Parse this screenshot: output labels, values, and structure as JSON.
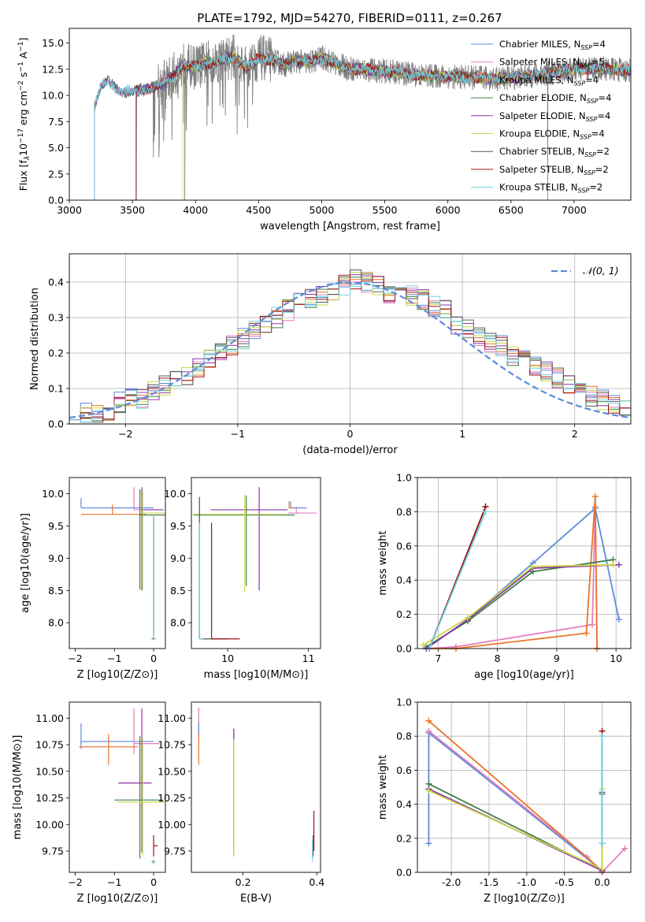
{
  "figure_title": "PLATE=1792, MJD=54270, FIBERID=0111, z=0.267",
  "colors": {
    "Chabrier MILES": "#5b8bd9",
    "Salpeter MILES": "#e37fbd",
    "Kroupa MILES": "#e8742a",
    "Chabrier ELODIE": "#3f7f46",
    "Salpeter ELODIE": "#8b34a8",
    "Kroupa ELODIE": "#c8da4a",
    "Chabrier STELIB": "#555555",
    "Salpeter STELIB": "#a11212",
    "Kroupa STELIB": "#72d3e3",
    "data": "#808080",
    "gauss": "#5b8bd9"
  },
  "chart_data": [
    {
      "id": "spectrum",
      "type": "line",
      "title": "PLATE=1792, MJD=54270, FIBERID=0111, z=0.267",
      "xlabel": "wavelength [Angstrom, rest frame]",
      "ylabel": "Flux [f_λ 10^-17 erg cm^-2 s^-1 A^-1]",
      "xlim": [
        3000,
        7450
      ],
      "ylim": [
        0,
        16.4
      ],
      "xticks": [
        3000,
        3500,
        4000,
        4500,
        5000,
        5500,
        6000,
        6500,
        7000
      ],
      "yticks": [
        0.0,
        2.5,
        5.0,
        7.5,
        10.0,
        12.5,
        15.0
      ],
      "legend": "top-right",
      "legend_entries": [
        {
          "name": "Chabrier MILES",
          "label": "Chabrier MILES, N",
          "sub": "SSP",
          "suffix": "=4"
        },
        {
          "name": "Salpeter MILES",
          "label": "Salpeter MILES, N",
          "sub": "SSP",
          "suffix": "=5"
        },
        {
          "name": "Kroupa MILES",
          "label": "Kroupa MILES, N",
          "sub": "SSP",
          "suffix": "=4"
        },
        {
          "name": "Chabrier ELODIE",
          "label": "Chabrier ELODIE, N",
          "sub": "SSP",
          "suffix": "=4"
        },
        {
          "name": "Salpeter ELODIE",
          "label": "Salpeter ELODIE, N",
          "sub": "SSP",
          "suffix": "=4"
        },
        {
          "name": "Kroupa ELODIE",
          "label": "Kroupa ELODIE, N",
          "sub": "SSP",
          "suffix": "=4"
        },
        {
          "name": "Chabrier STELIB",
          "label": "Chabrier STELIB, N",
          "sub": "SSP",
          "suffix": "=2"
        },
        {
          "name": "Salpeter STELIB",
          "label": "Salpeter STELIB, N",
          "sub": "SSP",
          "suffix": "=2"
        },
        {
          "name": "Kroupa STELIB",
          "label": "Kroupa STELIB, N",
          "sub": "SSP",
          "suffix": "=2"
        }
      ],
      "continuum": {
        "wavelength": [
          3200,
          3250,
          3300,
          3400,
          3500,
          3600,
          3700,
          3800,
          3900,
          4000,
          4100,
          4200,
          4300,
          4400,
          4500,
          4600,
          4700,
          4800,
          4900,
          5000,
          5200,
          5400,
          5600,
          5800,
          6000,
          6200,
          6400,
          6600,
          6800,
          7000,
          7200,
          7400
        ],
        "flux": [
          9.0,
          10.8,
          11.3,
          10.5,
          10.3,
          10.6,
          10.9,
          11.6,
          12.9,
          12.7,
          13.1,
          13.4,
          13.7,
          12.6,
          13.6,
          13.4,
          12.9,
          13.3,
          13.1,
          13.6,
          12.6,
          12.4,
          12.2,
          11.9,
          11.8,
          11.7,
          11.6,
          11.8,
          12.1,
          12.5,
          12.6,
          12.4
        ]
      },
      "model_start_wavelength": {
        "STELIB_and_MILES": 3200,
        "Kroupa MILES": 3530,
        "Kroupa ELODIE": 3900,
        "Salpeter STELIB": 3530
      },
      "data_start_wavelength": 3200,
      "data_end_wavelength": 7450,
      "deep_drops": [
        {
          "wavelength": 3530,
          "flux": 0.0
        },
        {
          "wavelength": 3915,
          "flux": 0.0
        },
        {
          "wavelength": 4330,
          "flux": 6.3
        },
        {
          "wavelength": 6790,
          "flux": 0.0
        }
      ]
    },
    {
      "id": "residuals",
      "type": "step",
      "xlabel": "(data-model)/error",
      "ylabel": "Normed distribution",
      "xlim": [
        -2.5,
        2.5
      ],
      "ylim": [
        0,
        0.48
      ],
      "xticks": [
        -2,
        -1,
        0,
        1,
        2
      ],
      "yticks": [
        0.0,
        0.1,
        0.2,
        0.3,
        0.4
      ],
      "grid": true,
      "legend": "top-right",
      "gauss_label": "𝒩(0, 1)",
      "bin_width": 0.1,
      "bin_start": -2.5,
      "base_hist": [
        0.04,
        0.03,
        0.03,
        0.04,
        0.06,
        0.08,
        0.07,
        0.09,
        0.11,
        0.12,
        0.14,
        0.16,
        0.18,
        0.21,
        0.22,
        0.24,
        0.27,
        0.28,
        0.3,
        0.32,
        0.34,
        0.35,
        0.36,
        0.37,
        0.39,
        0.41,
        0.4,
        0.39,
        0.37,
        0.38,
        0.36,
        0.35,
        0.33,
        0.32,
        0.28,
        0.27,
        0.25,
        0.23,
        0.22,
        0.19,
        0.18,
        0.16,
        0.15,
        0.13,
        0.11,
        0.1,
        0.08,
        0.07,
        0.06,
        0.04
      ]
    },
    {
      "id": "age_vs_Z",
      "type": "errorbar",
      "xlabel": "Z [log10(Z/Z⊙)]",
      "ylabel": "age  [log10(age/yr)]",
      "xlim": [
        -2.15,
        0.3
      ],
      "ylim": [
        7.6,
        10.25
      ],
      "xticks": [
        -2,
        -1,
        0
      ],
      "yticks": [
        8.0,
        8.5,
        9.0,
        9.5,
        10.0
      ],
      "series": [
        {
          "name": "Chabrier MILES",
          "x": -1.85,
          "xerr": [
            0.0,
            1.85
          ],
          "y": 9.78,
          "yerr": [
            0.0,
            0.15
          ]
        },
        {
          "name": "Kroupa MILES",
          "x": -1.05,
          "xerr": [
            0.8,
            0.85
          ],
          "y": 9.68,
          "yerr": [
            0.0,
            0.15
          ]
        },
        {
          "name": "Salpeter MILES",
          "x": -0.5,
          "xerr": [
            0.0,
            0.7
          ],
          "y": 9.75,
          "yerr": [
            0.0,
            0.35
          ]
        },
        {
          "name": "Salpeter ELODIE",
          "x": -0.3,
          "xerr": [
            0.0,
            0.55
          ],
          "y": 9.75,
          "yerr": [
            1.25,
            0.35
          ]
        },
        {
          "name": "Chabrier ELODIE",
          "x": -0.35,
          "xerr": [
            0.0,
            0.65
          ],
          "y": 9.67,
          "yerr": [
            1.15,
            0.4
          ]
        },
        {
          "name": "Kroupa ELODIE",
          "x": -0.28,
          "xerr": [
            0.0,
            0.6
          ],
          "y": 9.7,
          "yerr": [
            1.2,
            0.35
          ]
        },
        {
          "name": "Chabrier STELIB",
          "x": 0.0,
          "xerr": [
            0.05,
            0.05
          ],
          "y": 7.75,
          "yerr": [
            0.0,
            1.9
          ]
        },
        {
          "name": "Salpeter STELIB",
          "x": 0.0,
          "xerr": [
            0.0,
            0.05
          ],
          "y": 7.75,
          "yerr": [
            0.0,
            1.9
          ]
        },
        {
          "name": "Kroupa STELIB",
          "x": 0.0,
          "xerr": [
            0.0,
            0.05
          ],
          "y": 7.75,
          "yerr": [
            0.0,
            1.9
          ]
        }
      ]
    },
    {
      "id": "age_vs_mass",
      "type": "errorbar",
      "xlabel": "mass [log10(M/M⊙)]",
      "ylabel": "",
      "xlim": [
        9.55,
        11.15
      ],
      "ylim": [
        7.6,
        10.25
      ],
      "xticks": [
        10,
        11
      ],
      "yticks": [
        8.0,
        8.5,
        9.0,
        9.5,
        10.0
      ],
      "series": [
        {
          "name": "Chabrier MILES",
          "x": 10.78,
          "xerr": [
            0.0,
            0.2
          ],
          "y": 9.78,
          "yerr": [
            0.0,
            0.1
          ]
        },
        {
          "name": "Salpeter MILES",
          "x": 10.85,
          "xerr": [
            0.1,
            0.25
          ],
          "y": 9.7,
          "yerr": [
            0.0,
            0.1
          ]
        },
        {
          "name": "Kroupa MILES",
          "x": 10.76,
          "xerr": [
            0.0,
            0.05
          ],
          "y": 9.78,
          "yerr": [
            0.0,
            0.1
          ]
        },
        {
          "name": "Salpeter ELODIE",
          "x": 10.39,
          "xerr": [
            0.6,
            0.35
          ],
          "y": 9.75,
          "yerr": [
            1.25,
            0.35
          ]
        },
        {
          "name": "Chabrier ELODIE",
          "x": 10.23,
          "xerr": [
            0.65,
            0.6
          ],
          "y": 9.67,
          "yerr": [
            1.1,
            0.3
          ]
        },
        {
          "name": "Kroupa ELODIE",
          "x": 10.21,
          "xerr": [
            0.65,
            0.5
          ],
          "y": 9.68,
          "yerr": [
            1.2,
            0.3
          ]
        },
        {
          "name": "Chabrier STELIB",
          "x": 9.65,
          "xerr": [
            0.0,
            0.35
          ],
          "y": 7.75,
          "yerr": [
            0.0,
            2.2
          ]
        },
        {
          "name": "Salpeter STELIB",
          "x": 9.8,
          "xerr": [
            0.0,
            0.35
          ],
          "y": 7.75,
          "yerr": [
            0.0,
            1.8
          ]
        },
        {
          "name": "Kroupa STELIB",
          "x": 9.65,
          "xerr": [
            0.0,
            0.05
          ],
          "y": 7.75,
          "yerr": [
            0.0,
            1.8
          ]
        }
      ]
    },
    {
      "id": "weight_vs_age",
      "type": "line",
      "xlabel": "age  [log10(age/yr)]",
      "ylabel": "mass weight",
      "xlim": [
        6.65,
        10.25
      ],
      "ylim": [
        0,
        1.0
      ],
      "xticks": [
        7,
        8,
        9,
        10
      ],
      "yticks": [
        0.0,
        0.2,
        0.4,
        0.6,
        0.8,
        1.0
      ],
      "grid": true,
      "series": [
        {
          "name": "Chabrier MILES",
          "x": [
            7.5,
            8.6,
            9.65,
            10.05
          ],
          "y": [
            0.17,
            0.5,
            0.82,
            0.17
          ]
        },
        {
          "name": "Salpeter MILES",
          "x": [
            6.8,
            7.3,
            9.6,
            9.65,
            9.68
          ],
          "y": [
            0.0,
            0.01,
            0.14,
            0.83,
            0.0
          ]
        },
        {
          "name": "Kroupa MILES",
          "x": [
            6.8,
            7.3,
            9.5,
            9.65,
            9.68
          ],
          "y": [
            0.0,
            0.0,
            0.09,
            0.89,
            0.0
          ]
        },
        {
          "name": "Chabrier ELODIE",
          "x": [
            6.8,
            7.5,
            8.6,
            9.95
          ],
          "y": [
            0.01,
            0.16,
            0.45,
            0.52
          ]
        },
        {
          "name": "Salpeter ELODIE",
          "x": [
            6.8,
            7.5,
            8.6,
            10.05
          ],
          "y": [
            0.0,
            0.17,
            0.47,
            0.49
          ]
        },
        {
          "name": "Kroupa ELODIE",
          "x": [
            6.75,
            7.5,
            8.6,
            9.95
          ],
          "y": [
            0.02,
            0.18,
            0.48,
            0.49
          ]
        },
        {
          "name": "Chabrier STELIB",
          "x": [
            6.85,
            7.8
          ],
          "y": [
            0.0,
            0.83
          ]
        },
        {
          "name": "Salpeter STELIB",
          "x": [
            6.85,
            7.8
          ],
          "y": [
            0.0,
            0.83
          ]
        },
        {
          "name": "Kroupa STELIB",
          "x": [
            6.85,
            7.8
          ],
          "y": [
            0.0,
            0.8
          ]
        }
      ]
    },
    {
      "id": "mass_vs_Z",
      "type": "errorbar",
      "xlabel": "Z [log10(Z/Z⊙)]",
      "ylabel": "mass [log10(M/M⊙)]",
      "xlim": [
        -2.15,
        0.3
      ],
      "ylim": [
        9.55,
        11.15
      ],
      "xticks": [
        -2,
        -1,
        0
      ],
      "yticks": [
        9.75,
        10.0,
        10.25,
        10.5,
        10.75,
        11.0
      ],
      "series": [
        {
          "name": "Chabrier MILES",
          "x": -1.85,
          "xerr": [
            0.0,
            1.85
          ],
          "y": 10.78,
          "yerr": [
            0.07,
            0.17
          ]
        },
        {
          "name": "Kroupa MILES",
          "x": -1.15,
          "xerr": [
            0.75,
            0.75
          ],
          "y": 10.73,
          "yerr": [
            0.17,
            0.12
          ]
        },
        {
          "name": "Salpeter MILES",
          "x": -0.5,
          "xerr": [
            0.0,
            0.65
          ],
          "y": 10.76,
          "yerr": [
            0.1,
            0.33
          ]
        },
        {
          "name": "Salpeter ELODIE",
          "x": -0.3,
          "xerr": [
            0.6,
            0.25
          ],
          "y": 10.39,
          "yerr": [
            0.65,
            0.7
          ]
        },
        {
          "name": "Chabrier ELODIE",
          "x": -0.35,
          "xerr": [
            0.65,
            0.6
          ],
          "y": 10.23,
          "yerr": [
            0.55,
            0.6
          ]
        },
        {
          "name": "Kroupa ELODIE",
          "x": -0.28,
          "xerr": [
            0.65,
            0.6
          ],
          "y": 10.21,
          "yerr": [
            0.5,
            0.6
          ]
        },
        {
          "name": "Chabrier STELIB",
          "x": 0.0,
          "xerr": [
            0.05,
            0.05
          ],
          "y": 9.65,
          "yerr": [
            0.02,
            0.02
          ]
        },
        {
          "name": "Salpeter STELIB",
          "x": 0.0,
          "xerr": [
            0.0,
            0.1
          ],
          "y": 9.8,
          "yerr": [
            0.1,
            0.1
          ]
        },
        {
          "name": "Kroupa STELIB",
          "x": 0.0,
          "xerr": [
            0.0,
            0.05
          ],
          "y": 9.65,
          "yerr": [
            0.02,
            0.02
          ]
        }
      ]
    },
    {
      "id": "mass_vs_EBV",
      "type": "errorbar",
      "xlabel": "E(B-V)",
      "ylabel": "",
      "xlim": [
        0.06,
        0.41
      ],
      "ylim": [
        9.55,
        11.15
      ],
      "xticks": [
        0.2,
        0.4
      ],
      "yticks": [
        9.75,
        10.0,
        10.25,
        10.5,
        10.75,
        11.0
      ],
      "series": [
        {
          "name": "Salpeter MILES",
          "x": 0.08,
          "y": 10.85,
          "yerr": [
            0.1,
            0.25
          ]
        },
        {
          "name": "Kroupa MILES",
          "x": 0.08,
          "y": 10.76,
          "yerr": [
            0.2,
            0.2
          ]
        },
        {
          "name": "Chabrier MILES",
          "x": 0.08,
          "y": 10.9,
          "yerr": [
            0.05,
            0.05
          ]
        },
        {
          "name": "Chabrier ELODIE",
          "x": 0.175,
          "y": 10.3,
          "yerr": [
            0.6,
            0.6
          ]
        },
        {
          "name": "Salpeter ELODIE",
          "x": 0.175,
          "y": 10.3,
          "yerr": [
            0.55,
            0.6
          ]
        },
        {
          "name": "Kroupa ELODIE",
          "x": 0.175,
          "y": 10.3,
          "yerr": [
            0.6,
            0.5
          ]
        },
        {
          "name": "Chabrier STELIB",
          "x": 0.39,
          "y": 9.8,
          "yerr": [
            0.1,
            0.1
          ]
        },
        {
          "name": "Salpeter STELIB",
          "x": 0.392,
          "y": 9.85,
          "yerr": [
            0.1,
            0.28
          ]
        },
        {
          "name": "Kroupa STELIB",
          "x": 0.388,
          "y": 9.75,
          "yerr": [
            0.1,
            0.1
          ]
        }
      ]
    },
    {
      "id": "weight_vs_Z",
      "type": "line",
      "xlabel": "Z [log10(Z/Z⊙)]",
      "ylabel": "mass weight",
      "xlim": [
        -2.45,
        0.38
      ],
      "ylim": [
        0,
        1.0
      ],
      "xticks": [
        -2.0,
        -1.5,
        -1.0,
        -0.5,
        0.0
      ],
      "yticks": [
        0.0,
        0.2,
        0.4,
        0.6,
        0.8,
        1.0
      ],
      "grid": true,
      "series": [
        {
          "name": "Chabrier MILES",
          "x": [
            -2.3,
            -2.3,
            0.0
          ],
          "y": [
            0.17,
            0.82,
            0.01
          ]
        },
        {
          "name": "Salpeter MILES",
          "x": [
            -2.3,
            -0.2,
            0.0,
            0.0,
            0.3
          ],
          "y": [
            0.83,
            0.09,
            0.0,
            0.0,
            0.14
          ]
        },
        {
          "name": "Kroupa MILES",
          "x": [
            -2.3,
            0.0
          ],
          "y": [
            0.89,
            0.01
          ]
        },
        {
          "name": "Chabrier ELODIE",
          "x": [
            -2.3,
            0.0,
            0.0
          ],
          "y": [
            0.52,
            0.01,
            0.46
          ]
        },
        {
          "name": "Salpeter ELODIE",
          "x": [
            -2.3,
            0.0,
            0.0
          ],
          "y": [
            0.49,
            0.01,
            0.47
          ]
        },
        {
          "name": "Kroupa ELODIE",
          "x": [
            -2.3,
            0.0,
            0.0
          ],
          "y": [
            0.48,
            0.02,
            0.49
          ]
        },
        {
          "name": "Chabrier STELIB",
          "x": [
            0.0,
            0.0
          ],
          "y": [
            0.17,
            0.83
          ]
        },
        {
          "name": "Salpeter STELIB",
          "x": [
            0.0,
            0.0
          ],
          "y": [
            0.17,
            0.83
          ]
        },
        {
          "name": "Kroupa STELIB",
          "x": [
            0.0,
            0.0
          ],
          "y": [
            0.17,
            0.8
          ]
        }
      ]
    }
  ]
}
